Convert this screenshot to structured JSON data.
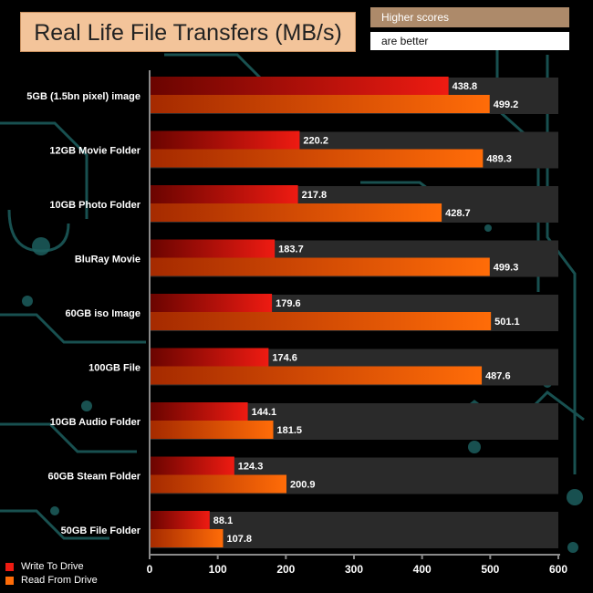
{
  "header": {
    "title": "Real Life File Transfers (MB/s)",
    "note_line1": "Higher scores",
    "note_line2": "are better"
  },
  "colors": {
    "write": "#ee1b12",
    "write_dark": "#6a0400",
    "read": "#ff6c08",
    "read_dark": "#a52a00",
    "track": "#2a2a2a",
    "axis": "#8a8a8a",
    "circuit": "#1d5f5e"
  },
  "chart_data": {
    "type": "bar",
    "orientation": "horizontal",
    "title": "Real Life File Transfers (MB/s)",
    "categories": [
      "5GB (1.5bn pixel) image",
      "12GB Movie Folder",
      "10GB Photo Folder",
      "BluRay Movie",
      "60GB iso Image",
      "100GB File",
      "10GB Audio Folder",
      "60GB Steam Folder",
      "50GB File Folder"
    ],
    "series": [
      {
        "name": "Write To  Drive",
        "values": [
          438.8,
          220.2,
          217.8,
          183.7,
          179.6,
          174.6,
          144.1,
          124.3,
          88.1
        ]
      },
      {
        "name": "Read From  Drive",
        "values": [
          499.2,
          489.3,
          428.7,
          499.3,
          501.1,
          487.6,
          181.5,
          200.9,
          107.8
        ]
      }
    ],
    "xlim": [
      0,
      600
    ],
    "xticks": [
      0,
      100,
      200,
      300,
      400,
      500,
      600
    ],
    "xlabel": "",
    "ylabel": "",
    "legend": "bottom-left"
  }
}
